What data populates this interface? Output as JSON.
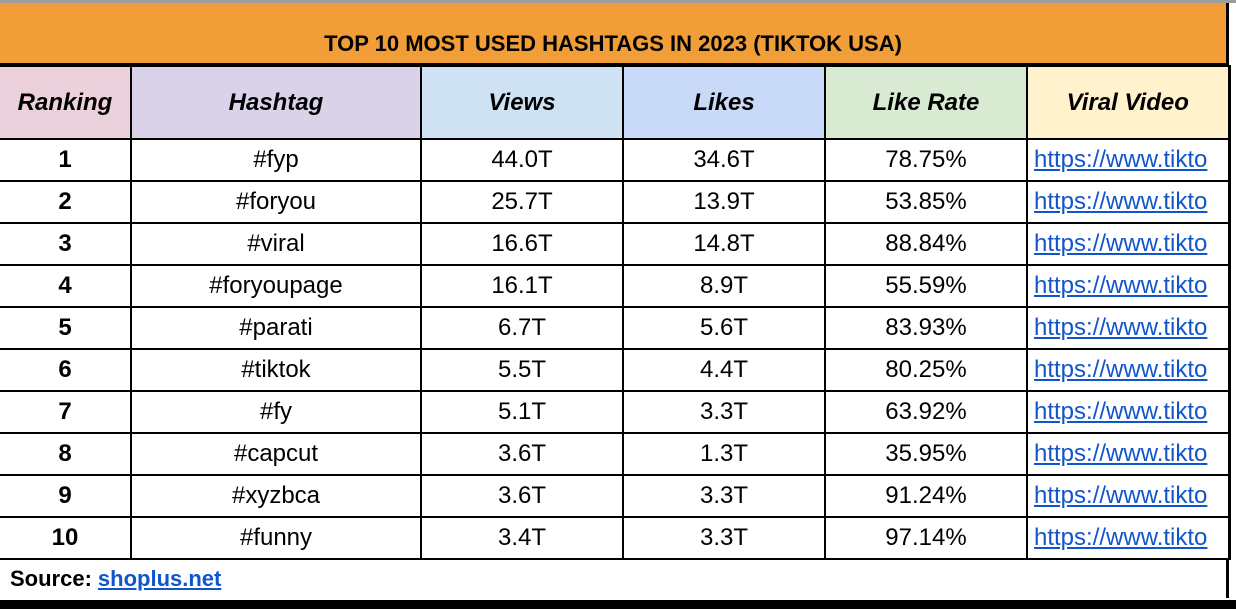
{
  "title": "TOP 10 MOST USED HASHTAGS IN 2023 (TIKTOK USA)",
  "colors": {
    "title_bg": "#f19e38",
    "ranking_header": "#ead1dc",
    "hashtag_header": "#d9d2e9",
    "views_header": "#cfe2f3",
    "likes_header": "#c9daf8",
    "like_rate_header": "#d9ead3",
    "viral_video_header": "#fff2cc",
    "link": "#1155cc"
  },
  "columns": [
    "Ranking",
    "Hashtag",
    "Views",
    "Likes",
    "Like Rate",
    "Viral Video"
  ],
  "rows": [
    {
      "ranking": "1",
      "hashtag": "#fyp",
      "views": "44.0T",
      "likes": "34.6T",
      "like_rate": "78.75%",
      "viral_video": "https://www.tikto"
    },
    {
      "ranking": "2",
      "hashtag": "#foryou",
      "views": "25.7T",
      "likes": "13.9T",
      "like_rate": "53.85%",
      "viral_video": "https://www.tikto"
    },
    {
      "ranking": "3",
      "hashtag": "#viral",
      "views": "16.6T",
      "likes": "14.8T",
      "like_rate": "88.84%",
      "viral_video": "https://www.tikto"
    },
    {
      "ranking": "4",
      "hashtag": "#foryoupage",
      "views": "16.1T",
      "likes": "8.9T",
      "like_rate": "55.59%",
      "viral_video": "https://www.tikto"
    },
    {
      "ranking": "5",
      "hashtag": "#parati",
      "views": "6.7T",
      "likes": "5.6T",
      "like_rate": "83.93%",
      "viral_video": "https://www.tikto"
    },
    {
      "ranking": "6",
      "hashtag": "#tiktok",
      "views": "5.5T",
      "likes": "4.4T",
      "like_rate": "80.25%",
      "viral_video": "https://www.tikto"
    },
    {
      "ranking": "7",
      "hashtag": "#fy",
      "views": "5.1T",
      "likes": "3.3T",
      "like_rate": "63.92%",
      "viral_video": "https://www.tikto"
    },
    {
      "ranking": "8",
      "hashtag": "#capcut",
      "views": "3.6T",
      "likes": "1.3T",
      "like_rate": "35.95%",
      "viral_video": "https://www.tikto"
    },
    {
      "ranking": "9",
      "hashtag": "#xyzbca",
      "views": "3.6T",
      "likes": "3.3T",
      "like_rate": "91.24%",
      "viral_video": "https://www.tikto"
    },
    {
      "ranking": "10",
      "hashtag": "#funny",
      "views": "3.4T",
      "likes": "3.3T",
      "like_rate": "97.14%",
      "viral_video": "https://www.tikto"
    }
  ],
  "source": {
    "label": "Source:",
    "link_text": "shoplus.net"
  }
}
